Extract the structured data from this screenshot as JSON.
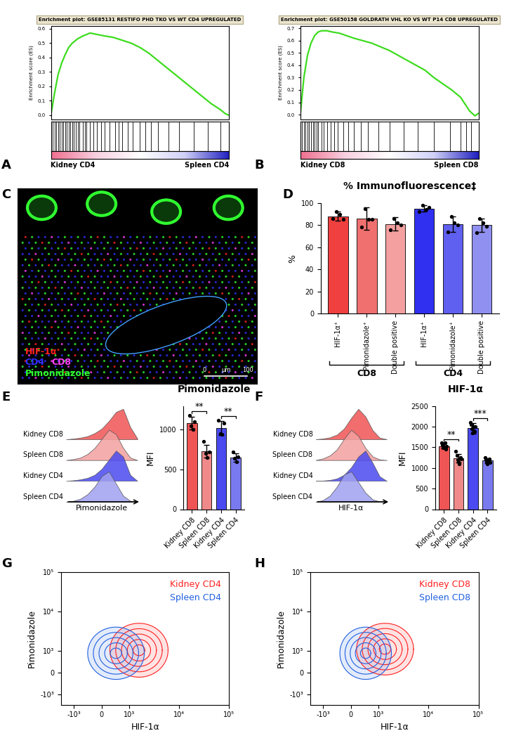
{
  "chart_data": [
    {
      "panel": "A",
      "type": "enrichment",
      "title": "Enrichment plot: GSE85131 RESTIFO PHD TKO VS WT CD4 UPREGULATED",
      "y_label": "Enrichment score (ES)",
      "x": [
        0,
        2,
        4,
        6,
        8,
        10,
        12,
        15,
        18,
        22,
        26,
        30,
        35,
        40,
        45,
        50,
        55,
        60,
        65,
        70,
        75,
        80,
        85,
        90,
        95,
        98,
        100
      ],
      "values": [
        0,
        0.15,
        0.28,
        0.36,
        0.42,
        0.47,
        0.5,
        0.53,
        0.55,
        0.57,
        0.56,
        0.55,
        0.54,
        0.52,
        0.5,
        0.47,
        0.43,
        0.38,
        0.33,
        0.28,
        0.23,
        0.18,
        0.13,
        0.08,
        0.04,
        0.01,
        0
      ],
      "color": "#3ddc1e",
      "hits": [
        1,
        2,
        3,
        4,
        5,
        6,
        7,
        8,
        9,
        10,
        11,
        12,
        13,
        14,
        15,
        16,
        18,
        19,
        20,
        22,
        24,
        26,
        28,
        30,
        33,
        36,
        38,
        40,
        43,
        46,
        50,
        53,
        56,
        60,
        66,
        72,
        80,
        88,
        95
      ],
      "xlim": [
        0,
        100
      ],
      "ylim": [
        -0.03,
        0.62
      ],
      "yticks": [
        0.0,
        0.1,
        0.2,
        0.3,
        0.4,
        0.5,
        0.6
      ],
      "tick_labels": "y",
      "left_label": "Kidney CD4",
      "right_label": "Spleen CD4"
    },
    {
      "panel": "B",
      "type": "enrichment",
      "title": "Enrichment plot: GSE50158 GOLDRATH VHL KO VS WT P14 CD8 UPREGULATED",
      "y_label": "Enrichment score (ES)",
      "x": [
        0,
        2,
        4,
        6,
        8,
        10,
        12,
        15,
        18,
        22,
        26,
        30,
        35,
        40,
        45,
        50,
        55,
        60,
        65,
        70,
        75,
        80,
        85,
        90,
        95,
        98,
        100
      ],
      "values": [
        0,
        0.3,
        0.48,
        0.58,
        0.64,
        0.67,
        0.68,
        0.68,
        0.67,
        0.66,
        0.64,
        0.62,
        0.6,
        0.58,
        0.55,
        0.52,
        0.48,
        0.44,
        0.4,
        0.36,
        0.3,
        0.25,
        0.2,
        0.14,
        0.03,
        -0.01,
        0.01
      ],
      "color": "#3ddc1e",
      "hits": [
        1,
        2,
        3,
        4,
        5,
        6,
        7,
        8,
        9,
        10,
        12,
        13,
        15,
        17,
        19,
        21,
        24,
        27,
        30,
        34,
        38,
        44,
        50,
        58,
        66,
        75,
        84,
        90,
        93,
        96
      ],
      "xlim": [
        0,
        100
      ],
      "ylim": [
        -0.04,
        0.72
      ],
      "yticks": [
        0.0,
        0.1,
        0.2,
        0.3,
        0.4,
        0.5,
        0.6,
        0.7
      ],
      "tick_labels": "y",
      "left_label": "Kidney CD8",
      "right_label": "Spleen CD8"
    },
    {
      "panel": "C",
      "type": "image",
      "channels": [
        {
          "name": "HIF-1α",
          "color": "#ff2020"
        },
        {
          "name": "CD4",
          "color": "#3030ff"
        },
        {
          "name": "CD8",
          "color": "#ff40ff"
        },
        {
          "name": "Pimonidazole",
          "color": "#30ff30"
        }
      ],
      "scale_bar": [
        "0",
        "μm",
        "100"
      ],
      "tick_labels": false
    },
    {
      "panel": "D",
      "type": "bar",
      "title": "% Immunofluorescence‡",
      "y_label": "%",
      "categories": [
        "HIF-1α⁺",
        "Pimonidazole⁺",
        "Double positive",
        "HIF-1α⁺",
        "Pimonidazole⁺",
        "Double positive"
      ],
      "values": [
        88,
        86,
        81,
        95,
        81,
        80
      ],
      "errors": [
        4,
        10,
        6,
        3,
        7,
        6
      ],
      "points": [
        [
          86,
          92,
          90,
          85
        ],
        [
          78,
          95,
          85,
          85
        ],
        [
          76,
          86,
          82,
          80
        ],
        [
          92,
          98,
          94,
          96
        ],
        [
          74,
          88,
          82,
          80
        ],
        [
          73,
          86,
          82,
          79
        ]
      ],
      "colors": [
        "#f04040",
        "#f07070",
        "#f4a0a0",
        "#3030f0",
        "#6060f0",
        "#9090f0"
      ],
      "ylim": [
        0,
        100
      ],
      "yticks": [
        0,
        20,
        40,
        60,
        80,
        100
      ],
      "groups": [
        {
          "label": "CD8",
          "members": [
            0,
            1,
            2
          ]
        },
        {
          "label": "CD4",
          "members": [
            3,
            4,
            5
          ]
        }
      ]
    },
    {
      "panel": "E",
      "type": "ridgeline",
      "x_label": "Pimonidazole",
      "x": [
        0,
        1,
        2,
        3,
        4,
        5,
        6,
        7,
        8,
        9,
        10
      ],
      "series": [
        {
          "name": "Kidney CD8",
          "color": "#f05555",
          "values": [
            0,
            0.02,
            0.05,
            0.1,
            0.2,
            0.35,
            0.6,
            0.9,
            1.0,
            0.4,
            0.02
          ]
        },
        {
          "name": "Spleen CD8",
          "color": "#f4a0a0",
          "values": [
            0,
            0.03,
            0.08,
            0.2,
            0.4,
            0.7,
            1.0,
            0.85,
            0.4,
            0.08,
            0
          ]
        },
        {
          "name": "Kidney CD4",
          "color": "#4a4af0",
          "values": [
            0,
            0.02,
            0.05,
            0.1,
            0.2,
            0.4,
            0.7,
            1.0,
            0.8,
            0.2,
            0
          ]
        },
        {
          "name": "Spleen CD4",
          "color": "#a0a0f0",
          "values": [
            0,
            0.03,
            0.1,
            0.25,
            0.5,
            0.85,
            1.0,
            0.6,
            0.2,
            0.03,
            0
          ]
        }
      ],
      "xlim": [
        0,
        10
      ],
      "ylim": [
        0,
        1.1
      ],
      "tick_labels": false
    },
    {
      "type": "bar",
      "title": "Pimonidazole",
      "y_label": "MFI",
      "categories": [
        "Kidney CD8",
        "Spleen CD8",
        "Kidney CD4",
        "Spleen CD4"
      ],
      "values": [
        1080,
        730,
        1020,
        650
      ],
      "errors": [
        80,
        80,
        90,
        55
      ],
      "points": [
        [
          1180,
          1050,
          1000,
          1100
        ],
        [
          850,
          700,
          650,
          720
        ],
        [
          1120,
          950,
          940,
          1080
        ],
        [
          720,
          640,
          600,
          660
        ]
      ],
      "colors": [
        "#f05555",
        "#f08a8a",
        "#4a4af0",
        "#7a7af0"
      ],
      "ylim": [
        0,
        1300
      ],
      "yticks": [
        0,
        500,
        1000
      ],
      "significance": [
        {
          "pair": [
            0,
            1
          ],
          "label": "**"
        },
        {
          "pair": [
            2,
            3
          ],
          "label": "**"
        }
      ]
    },
    {
      "panel": "F",
      "type": "ridgeline",
      "x_label": "HIF-1α",
      "x": [
        0,
        1,
        2,
        3,
        4,
        5,
        6,
        7,
        8,
        9,
        10
      ],
      "series": [
        {
          "name": "Kidney CD8",
          "color": "#f05555",
          "values": [
            0,
            0.02,
            0.06,
            0.15,
            0.35,
            0.7,
            1.0,
            0.75,
            0.3,
            0.05,
            0
          ]
        },
        {
          "name": "Spleen CD8",
          "color": "#f4a0a0",
          "values": [
            0,
            0.05,
            0.15,
            0.35,
            0.7,
            1.0,
            0.8,
            0.4,
            0.12,
            0.02,
            0
          ]
        },
        {
          "name": "Kidney CD4",
          "color": "#4a4af0",
          "values": [
            0,
            0.01,
            0.03,
            0.08,
            0.2,
            0.45,
            0.8,
            1.0,
            0.6,
            0.15,
            0
          ]
        },
        {
          "name": "Spleen CD4",
          "color": "#a0a0f0",
          "values": [
            0,
            0.05,
            0.2,
            0.5,
            0.9,
            1.0,
            0.65,
            0.3,
            0.08,
            0.01,
            0
          ]
        }
      ],
      "xlim": [
        0,
        10
      ],
      "ylim": [
        0,
        1.1
      ],
      "tick_labels": false
    },
    {
      "type": "bar",
      "title": "HIF-1α",
      "y_label": "MFI",
      "categories": [
        "Kidney CD8",
        "Spleen CD8",
        "Kidney CD4",
        "Spleen CD4"
      ],
      "values": [
        1530,
        1230,
        1960,
        1180
      ],
      "errors": [
        60,
        100,
        130,
        60
      ],
      "points": [
        [
          1600,
          1550,
          1480,
          1520,
          1600,
          1450,
          1520
        ],
        [
          1400,
          1300,
          1200,
          1150,
          1100,
          1250,
          1220
        ],
        [
          2100,
          2050,
          1950,
          1850,
          2000,
          1900,
          1880,
          2000
        ],
        [
          1250,
          1200,
          1150,
          1100,
          1180,
          1220,
          1130
        ]
      ],
      "colors": [
        "#f05555",
        "#f08a8a",
        "#4a4af0",
        "#7a7af0"
      ],
      "ylim": [
        0,
        2500
      ],
      "yticks": [
        0,
        500,
        1000,
        1500,
        2000,
        2500
      ],
      "significance": [
        {
          "pair": [
            0,
            1
          ],
          "label": "**"
        },
        {
          "pair": [
            2,
            3
          ],
          "label": "***"
        }
      ]
    },
    {
      "panel": "G",
      "type": "contour",
      "x_label": "HIF-1α",
      "y_label": "Pimonidazole",
      "log": true,
      "series": [
        {
          "name": "Kidney CD4",
          "color": "#ff2020",
          "x_range": [
            300,
            6000
          ],
          "y_range": [
            -200,
            5000
          ]
        },
        {
          "name": "Spleen CD4",
          "color": "#2060e0",
          "x_range": [
            -500,
            2000
          ],
          "y_range": [
            -300,
            4000
          ]
        }
      ],
      "xlim": [
        -1800,
        100000
      ],
      "ylim": [
        -1800,
        100000
      ],
      "xticks": [
        {
          "value": -1000,
          "label": "-10³"
        },
        0,
        {
          "value": 1000,
          "label": "10³"
        },
        {
          "value": 10000,
          "label": "10⁴"
        },
        {
          "value": 100000,
          "label": "10⁵"
        }
      ],
      "yticks": [
        {
          "value": -1000,
          "label": "-10³"
        },
        0,
        {
          "value": 1000,
          "label": "10³"
        },
        {
          "value": 10000,
          "label": "10⁴"
        },
        {
          "value": 100000,
          "label": "10⁵"
        }
      ],
      "legend": "upper right"
    },
    {
      "panel": "H",
      "type": "contour",
      "x_label": "HIF-1α",
      "y_label": "Pimonidazole",
      "log": true,
      "series": [
        {
          "name": "Kidney CD8",
          "color": "#ff2020",
          "x_range": [
            200,
            5000
          ],
          "y_range": [
            -100,
            5000
          ]
        },
        {
          "name": "Spleen CD8",
          "color": "#2060e0",
          "x_range": [
            -400,
            1800
          ],
          "y_range": [
            -300,
            4000
          ]
        }
      ],
      "xlim": [
        -1800,
        100000
      ],
      "ylim": [
        -1800,
        100000
      ],
      "xticks": [
        {
          "value": -1000,
          "label": "-10³"
        },
        0,
        {
          "value": 1000,
          "label": "10³"
        },
        {
          "value": 10000,
          "label": "10⁴"
        },
        {
          "value": 100000,
          "label": "10⁵"
        }
      ],
      "yticks": [
        {
          "value": -1000,
          "label": "-10³"
        },
        0,
        {
          "value": 1000,
          "label": "10³"
        },
        {
          "value": 10000,
          "label": "10⁴"
        },
        {
          "value": 100000,
          "label": "10⁵"
        }
      ],
      "legend": "upper right"
    }
  ]
}
